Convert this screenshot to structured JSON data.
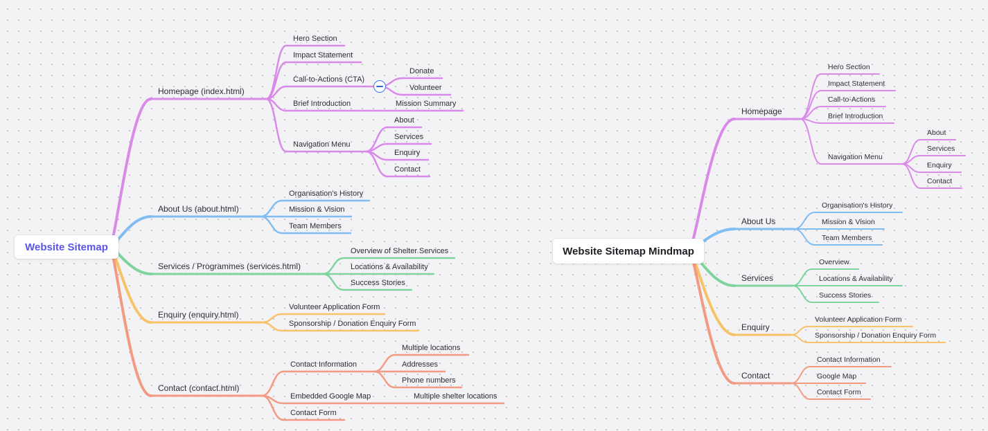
{
  "maps": [
    {
      "title": "Website Sitemap",
      "branches": [
        {
          "label": "Homepage (index.html)",
          "color": "#d98ae8",
          "children": [
            {
              "label": "Hero Section"
            },
            {
              "label": "Impact Statement"
            },
            {
              "label": "Call-to-Actions (CTA)",
              "collapse_control": "minus-icon",
              "children": [
                {
                  "label": "Donate"
                },
                {
                  "label": "Volunteer"
                }
              ]
            },
            {
              "label": "Brief Introduction",
              "children": [
                {
                  "label": "Mission Summary"
                }
              ]
            },
            {
              "label": "Navigation Menu",
              "children": [
                {
                  "label": "About"
                },
                {
                  "label": "Services"
                },
                {
                  "label": "Enquiry"
                },
                {
                  "label": "Contact"
                }
              ]
            }
          ]
        },
        {
          "label": "About Us (about.html)",
          "color": "#7fbdf3",
          "children": [
            {
              "label": "Organisation's History"
            },
            {
              "label": "Mission & Vision"
            },
            {
              "label": "Team Members"
            }
          ]
        },
        {
          "label": "Services / Programmes (services.html)",
          "color": "#7ed49c",
          "children": [
            {
              "label": "Overview of Shelter Services"
            },
            {
              "label": "Locations & Availability"
            },
            {
              "label": "Success Stories"
            }
          ]
        },
        {
          "label": "Enquiry (enquiry.html)",
          "color": "#f7c268",
          "children": [
            {
              "label": "Volunteer Application Form"
            },
            {
              "label": "Sponsorship / Donation Enquiry Form"
            }
          ]
        },
        {
          "label": "Contact (contact.html)",
          "color": "#f29a82",
          "children": [
            {
              "label": "Contact Information",
              "children": [
                {
                  "label": "Multiple locations"
                },
                {
                  "label": "Addresses"
                },
                {
                  "label": "Phone numbers"
                }
              ]
            },
            {
              "label": "Embedded Google Map",
              "children": [
                {
                  "label": "Multiple shelter locations"
                }
              ]
            },
            {
              "label": "Contact Form"
            }
          ]
        }
      ]
    },
    {
      "title": "Website Sitemap Mindmap",
      "branches": [
        {
          "label": "Homepage",
          "color": "#d98ae8",
          "children": [
            {
              "label": "Hero Section"
            },
            {
              "label": "Impact Statement"
            },
            {
              "label": "Call-to-Actions"
            },
            {
              "label": "Brief Introduction"
            },
            {
              "label": "Navigation Menu",
              "children": [
                {
                  "label": "About"
                },
                {
                  "label": "Services"
                },
                {
                  "label": "Enquiry"
                },
                {
                  "label": "Contact"
                }
              ]
            }
          ]
        },
        {
          "label": "About Us",
          "color": "#7fbdf3",
          "children": [
            {
              "label": "Organisation's History"
            },
            {
              "label": "Mission & Vision"
            },
            {
              "label": "Team Members"
            }
          ]
        },
        {
          "label": "Services",
          "color": "#7ed49c",
          "children": [
            {
              "label": "Overview"
            },
            {
              "label": "Locations & Availability"
            },
            {
              "label": "Success Stories"
            }
          ]
        },
        {
          "label": "Enquiry",
          "color": "#f7c268",
          "children": [
            {
              "label": "Volunteer Application Form"
            },
            {
              "label": "Sponsorship / Donation Enquiry Form"
            }
          ]
        },
        {
          "label": "Contact",
          "color": "#f29a82",
          "children": [
            {
              "label": "Contact Information"
            },
            {
              "label": "Google Map"
            },
            {
              "label": "Contact Form"
            }
          ]
        }
      ]
    }
  ]
}
